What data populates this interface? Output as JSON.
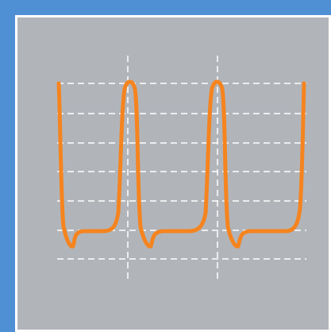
{
  "colors": {
    "outer_blue": "#4f8fd3",
    "panel_gray": "#b1b5ba",
    "border_white": "#ffffff",
    "grid_dash": "#ffffff",
    "waveform": "#f5841f"
  },
  "graphic": {
    "kind": "oscilloscope-style periodic waveform",
    "cycles": 3,
    "grid_lines": {
      "horizontal": 7,
      "vertical": 2
    }
  }
}
